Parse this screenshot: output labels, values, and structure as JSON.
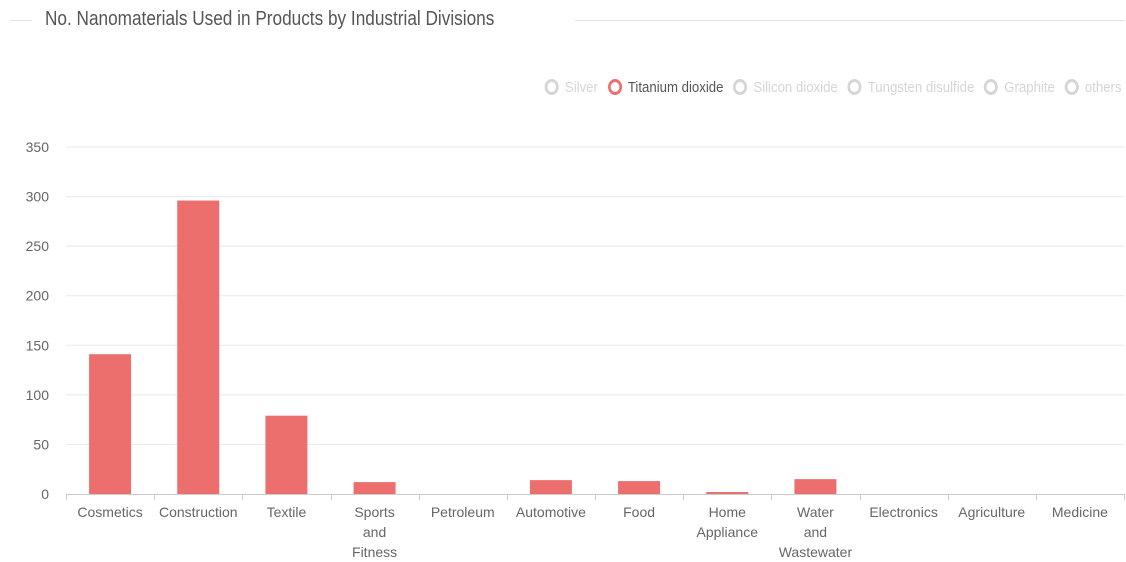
{
  "title": "No. Nanomaterials Used in Products by Industrial Divisions",
  "legend": [
    {
      "label": "Silver",
      "active": false
    },
    {
      "label": "Titanium dioxide",
      "active": true
    },
    {
      "label": "Silicon dioxide",
      "active": false
    },
    {
      "label": "Tungsten disulfide",
      "active": false
    },
    {
      "label": "Graphite",
      "active": false
    },
    {
      "label": "others",
      "active": false
    }
  ],
  "colors": {
    "bar": "#ec6f6d",
    "inactive": "#d5d5d5",
    "grid": "#e8e8e8"
  },
  "chart_data": {
    "type": "bar",
    "title": "No. Nanomaterials Used in Products by Industrial Divisions",
    "categories": [
      "Cosmetics",
      "Construction",
      "Textile",
      "Sports and Fitness",
      "Petroleum",
      "Automotive",
      "Food",
      "Home Appliance",
      "Water and Wastewater",
      "Electronics",
      "Agriculture",
      "Medicine"
    ],
    "series": [
      {
        "name": "Titanium dioxide",
        "values": [
          141,
          296,
          79,
          12,
          0,
          14,
          13,
          2,
          15,
          0,
          0,
          0
        ]
      }
    ],
    "yticks": [
      0,
      50,
      100,
      150,
      200,
      250,
      300,
      350
    ],
    "ylim": [
      0,
      350
    ],
    "xlabel": "",
    "ylabel": "",
    "grid": true,
    "legend_position": "top-right"
  }
}
